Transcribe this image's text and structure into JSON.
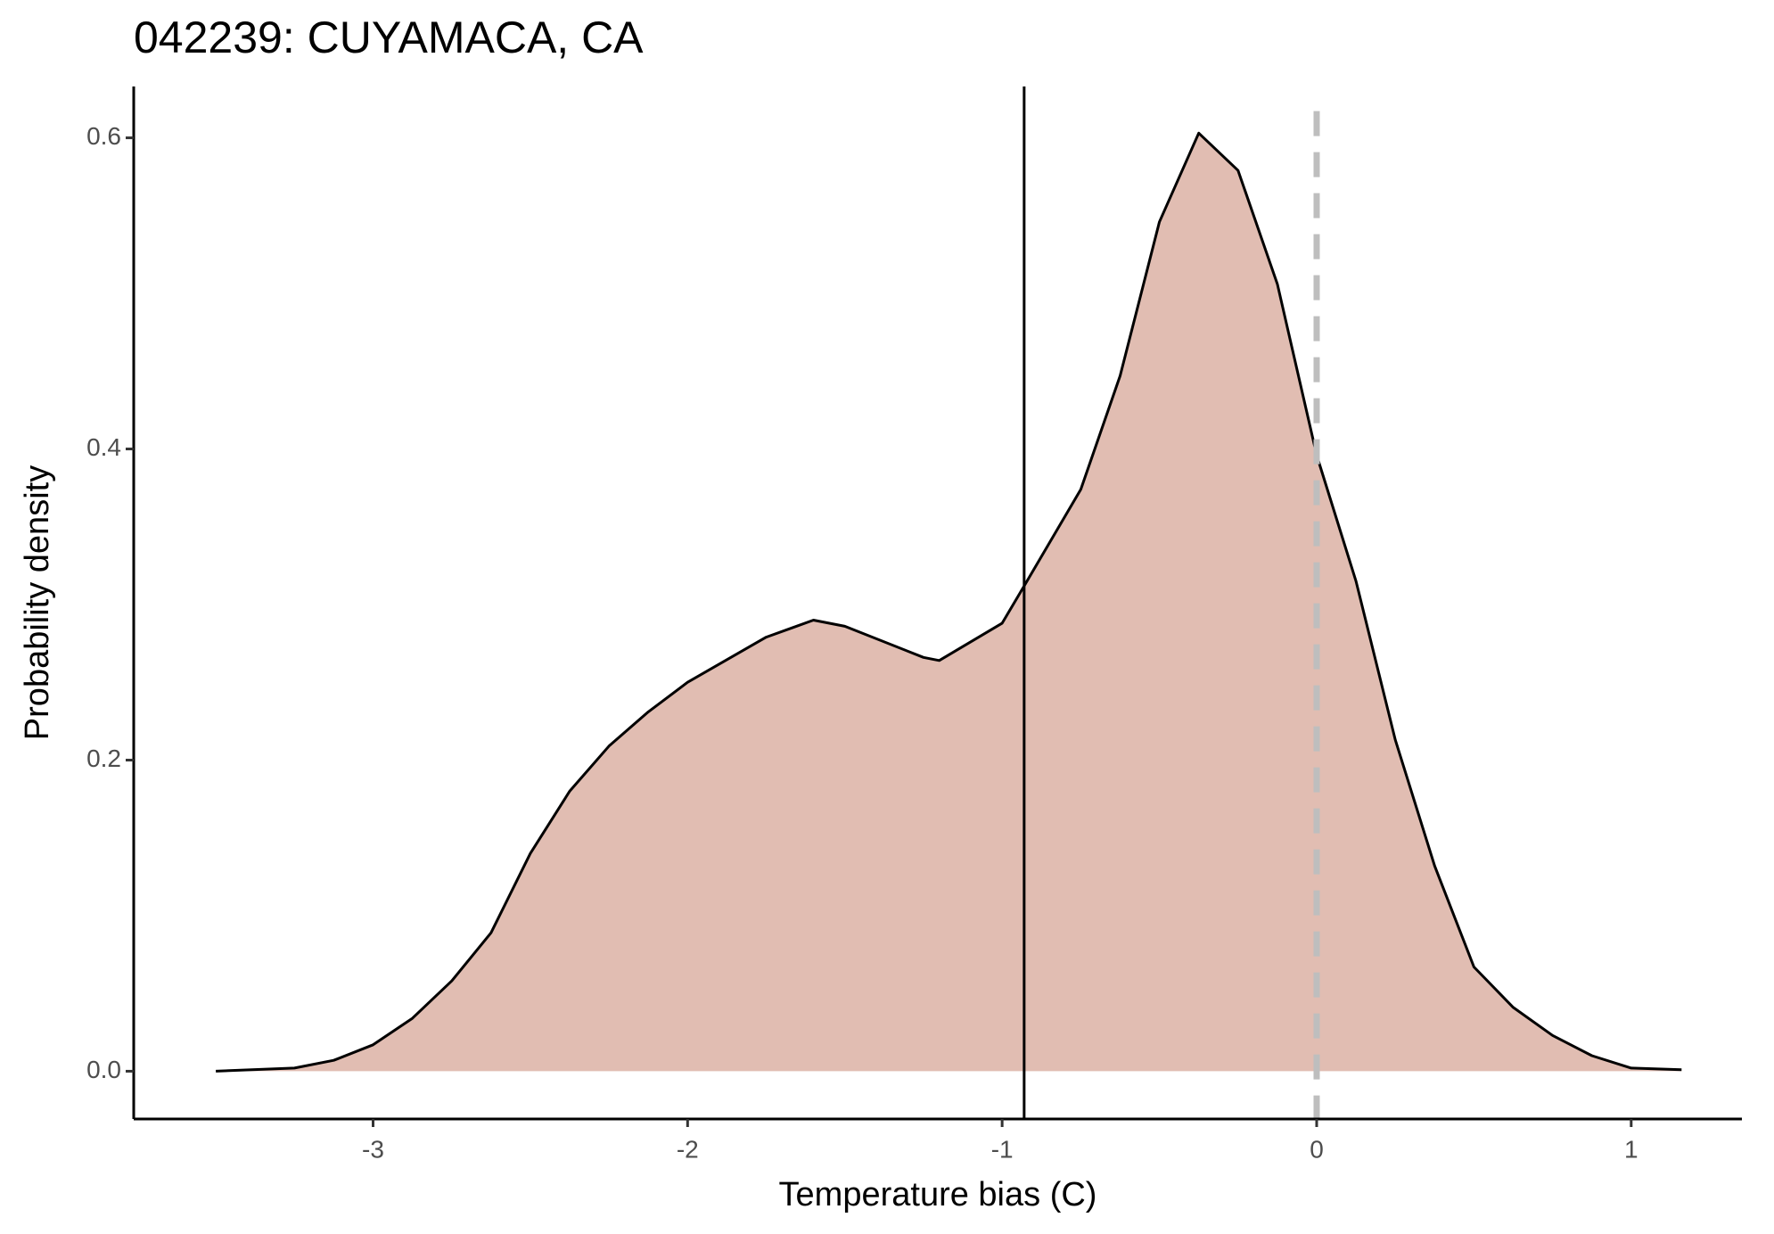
{
  "chart_data": {
    "type": "density",
    "title": "042239: CUYAMACA, CA",
    "x_label": "Temperature bias (C)",
    "y_label": "Probability density",
    "x": [
      -3.5,
      -3.25,
      -3.125,
      -3.0,
      -2.875,
      -2.75,
      -2.625,
      -2.5,
      -2.375,
      -2.25,
      -2.125,
      -2.0,
      -1.75,
      -1.6,
      -1.5,
      -1.25,
      -1.2,
      -1.0,
      -0.93,
      -0.75,
      -0.625,
      -0.5,
      -0.375,
      -0.25,
      -0.125,
      0,
      0.125,
      0.25,
      0.375,
      0.5,
      0.625,
      0.75,
      0.875,
      1.0,
      1.16
    ],
    "values": [
      0.0,
      0.002,
      0.007,
      0.017,
      0.034,
      0.058,
      0.089,
      0.14,
      0.18,
      0.209,
      0.231,
      0.25,
      0.279,
      0.29,
      0.286,
      0.266,
      0.264,
      0.288,
      0.312,
      0.374,
      0.447,
      0.546,
      0.603,
      0.579,
      0.506,
      0.396,
      0.315,
      0.213,
      0.132,
      0.067,
      0.041,
      0.023,
      0.01,
      0.002,
      0.001
    ],
    "color": "#e1bdb2",
    "line_color": "#000000",
    "mean_line": -0.93,
    "reference_line": 0,
    "reference_color": "#bebebe",
    "xlim": [
      -3.761,
      1.352
    ],
    "ylim": [
      -0.0307,
      0.633
    ],
    "xticks": [
      -3,
      -2,
      -1,
      0,
      1
    ],
    "yticks": [
      {
        "value": 0,
        "label": "0.0"
      },
      0.2,
      0.4,
      0.6
    ],
    "grid": false
  }
}
